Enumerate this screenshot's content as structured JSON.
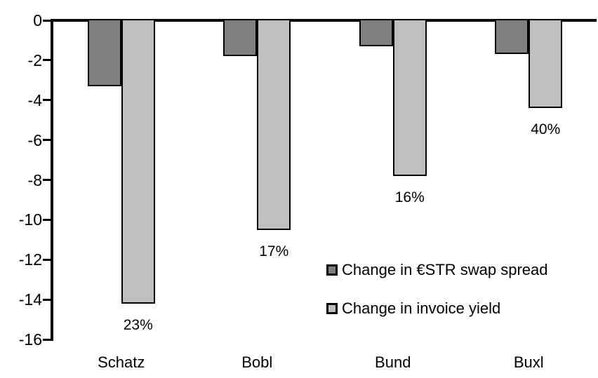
{
  "chart_data": {
    "type": "bar",
    "title": "",
    "xlabel": "",
    "ylabel": "",
    "categories": [
      "Schatz",
      "Bobl",
      "Bund",
      "Buxl"
    ],
    "series": [
      {
        "name": "Change in €STR swap spread",
        "color": "#7f7f7f",
        "values": [
          -3.3,
          -1.8,
          -1.3,
          -1.7
        ]
      },
      {
        "name": "Change in invoice yield",
        "color": "#bfbfbf",
        "values": [
          -14.2,
          -10.5,
          -7.8,
          -4.4
        ]
      }
    ],
    "bar_labels": {
      "attached_to_series": "Change in invoice yield",
      "values": [
        "23%",
        "17%",
        "16%",
        "40%"
      ]
    },
    "yticks": [
      0,
      -2,
      -4,
      -6,
      -8,
      -10,
      -12,
      -14,
      -16
    ],
    "ylim": [
      -16,
      0
    ],
    "grid": false,
    "legend_position": "inside-lower-right",
    "bar_border_color": "#000000",
    "axis_color": "#000000",
    "background_color": "#ffffff"
  }
}
